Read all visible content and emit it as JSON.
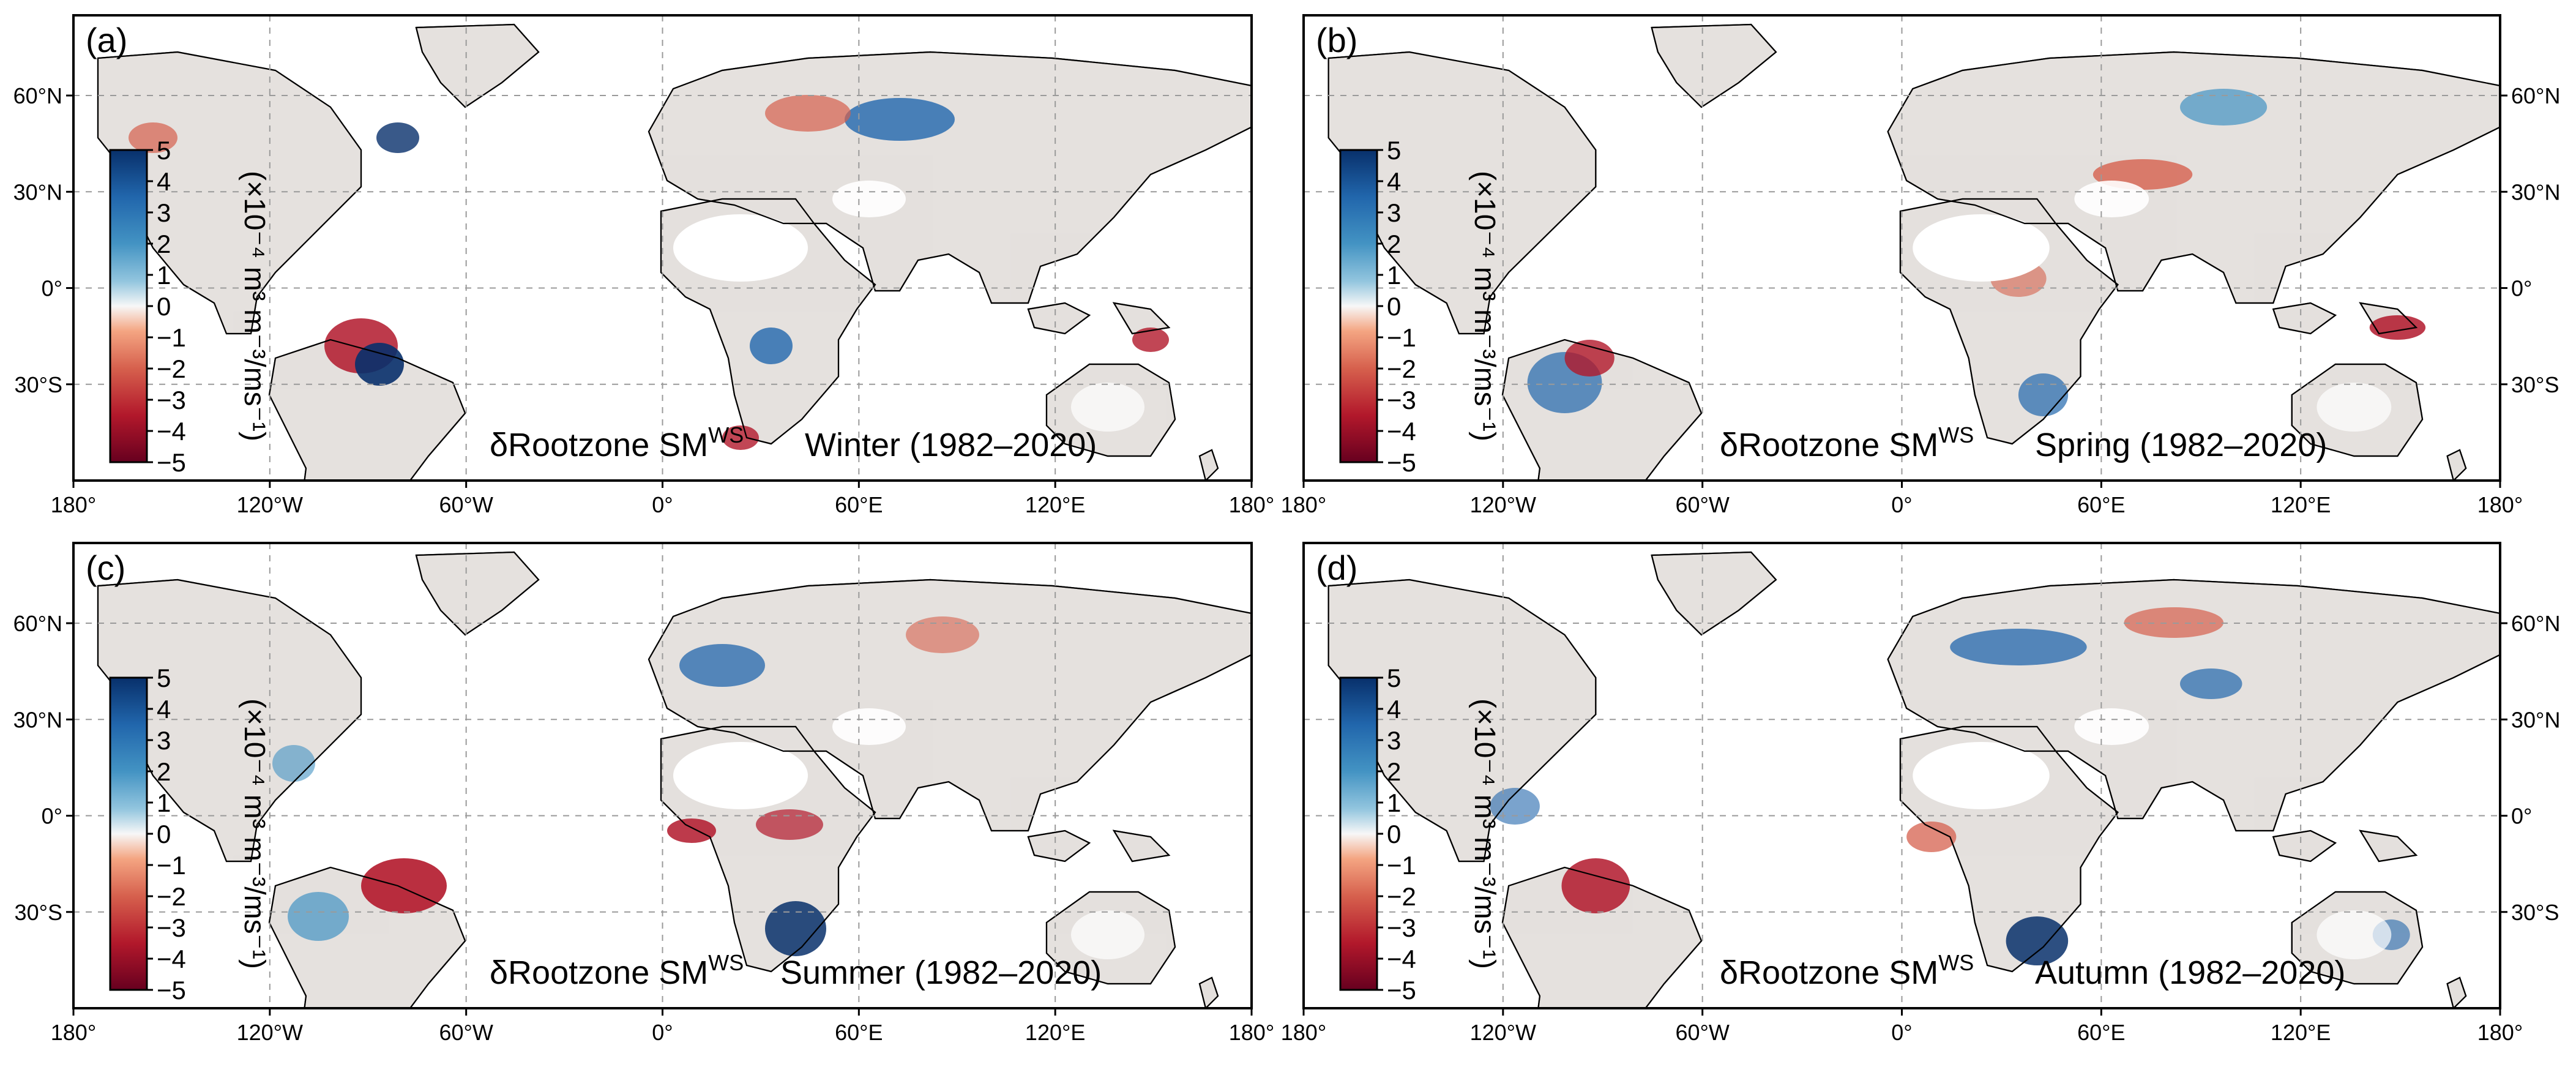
{
  "figure": {
    "variable_label": "δRootzone SM",
    "variable_superscript": "WS",
    "colorbar_unit": "(×10⁻⁴ m³ m⁻³/ms⁻¹)",
    "colorbar_ticks": [
      "5",
      "4",
      "3",
      "2",
      "1",
      "0",
      "−1",
      "−2",
      "−3",
      "−4",
      "−5"
    ],
    "colorbar_range": [
      -5,
      5
    ],
    "colors": {
      "strong_positive": "#08306b",
      "positive": "#4393c3",
      "weak_positive": "#d1e5f0",
      "neutral": "#f7f7f7",
      "weak_negative": "#fddbc7",
      "negative": "#d6604d",
      "strong_negative": "#67001f",
      "grid": "#9a9a9a"
    },
    "lon_ticks": [
      "180°",
      "120°W",
      "60°W",
      "0°",
      "60°E",
      "120°E",
      "180°"
    ],
    "lat_ticks": [
      "60°N",
      "30°N",
      "0°",
      "30°S"
    ]
  },
  "panels": [
    {
      "id": "a",
      "label": "(a)",
      "season": "Winter",
      "period": "(1982–2020)"
    },
    {
      "id": "b",
      "label": "(b)",
      "season": "Spring",
      "period": "(1982–2020)"
    },
    {
      "id": "c",
      "label": "(c)",
      "season": "Summer",
      "period": "(1982–2020)"
    },
    {
      "id": "d",
      "label": "(d)",
      "season": "Autumn",
      "period": "(1982–2020)"
    }
  ]
}
